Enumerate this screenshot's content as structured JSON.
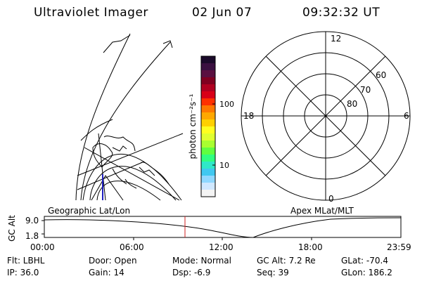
{
  "header": {
    "title": "Ultraviolet Imager",
    "date": "02 Jun 07",
    "time": "09:32:32 UT"
  },
  "colorbar": {
    "label": "photon cm⁻²s⁻¹",
    "tick_labels": [
      "100",
      "10"
    ],
    "colors": [
      "#1a0a2a",
      "#3a1040",
      "#5a1040",
      "#800020",
      "#b00020",
      "#d80018",
      "#ff3000",
      "#ff7800",
      "#ffa800",
      "#ffd000",
      "#ffff20",
      "#e0ff30",
      "#a8ff30",
      "#60ff40",
      "#30ff80",
      "#30e8c8",
      "#40c8f0",
      "#90d8ff",
      "#d0e8ff",
      "#f4f4f4"
    ]
  },
  "left_panel": {
    "label": "Geographic Lat/Lon"
  },
  "polar_panel": {
    "label": "Apex MLat/MLT",
    "mlt_labels": {
      "top": "12",
      "left": "18",
      "right": "6",
      "bottom": "0"
    },
    "lat_labels": [
      "60",
      "70",
      "80"
    ]
  },
  "timeline": {
    "axis_label": "GC Alt",
    "y_labels": [
      "9.0",
      "1.8"
    ],
    "x_labels": [
      "00:00",
      "06:00",
      "12:00",
      "18:00",
      "23:59"
    ],
    "marker_color": "#d02020"
  },
  "info": {
    "filter": "Flt: LBHL",
    "door": "Door: Open",
    "mode": "Mode: Normal",
    "gc_alt": "GC Alt: 7.2 Re",
    "glat": "GLat: -70.4",
    "ip": "IP: 36.0",
    "gain": "Gain: 14",
    "dsp": "Dsp:    -6.9",
    "seq": "Seq: 39",
    "glon": "GLon: 186.2"
  }
}
